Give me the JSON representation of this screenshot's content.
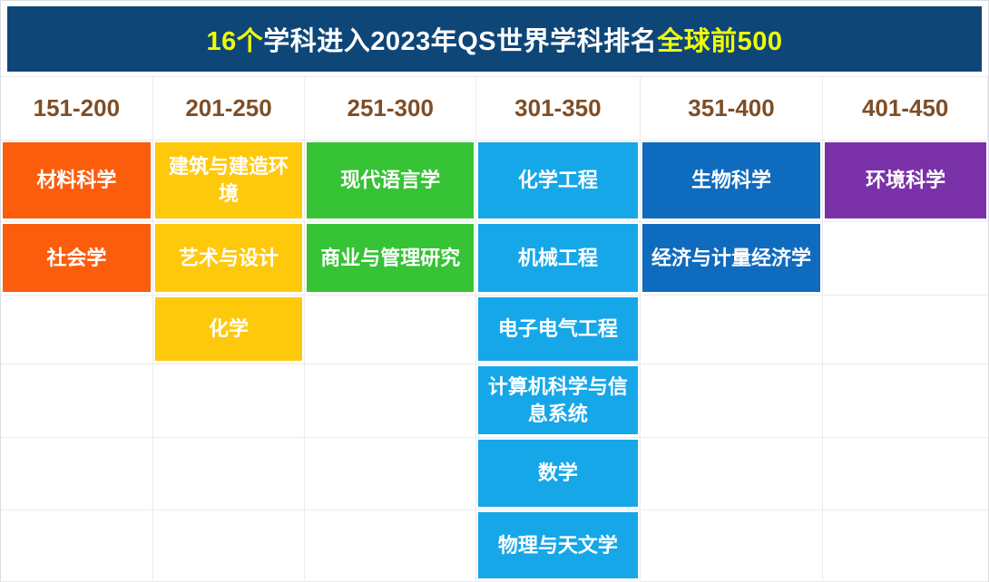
{
  "title": {
    "accent_prefix": "16个",
    "middle": "学科进入2023年QS世界学科排名",
    "accent_suffix": "全球前500"
  },
  "colors": {
    "banner_bg": "#0E4678",
    "banner_accent": "#EFFF00",
    "banner_text": "#FFFFFF",
    "range_text": "#7F4E26",
    "grid_line": "#ECECEC",
    "cell_text": "#FFFFFF",
    "page_bg": "#FFFFFF"
  },
  "chart_data": {
    "type": "table",
    "title": "16个学科进入2023年QS世界学科排名全球前500",
    "columns": [
      {
        "range": "151-200",
        "color": "#FB5D0D",
        "subjects": [
          "材料科学",
          "社会学"
        ]
      },
      {
        "range": "201-250",
        "color": "#FFC90B",
        "subjects": [
          "建筑与建造环境",
          "艺术与设计",
          "化学"
        ]
      },
      {
        "range": "251-300",
        "color": "#36C336",
        "subjects": [
          "现代语言学",
          "商业与管理研究"
        ]
      },
      {
        "range": "301-350",
        "color": "#16A7E8",
        "subjects": [
          "化学工程",
          "机械工程",
          "电子电气工程",
          "计算机科学与信息系统",
          "数学",
          "物理与天文学"
        ]
      },
      {
        "range": "351-400",
        "color": "#0F6BBE",
        "subjects": [
          "生物科学",
          "经济与计量经济学"
        ]
      },
      {
        "range": "401-450",
        "color": "#7A31A8",
        "subjects": [
          "环境科学"
        ]
      }
    ]
  }
}
